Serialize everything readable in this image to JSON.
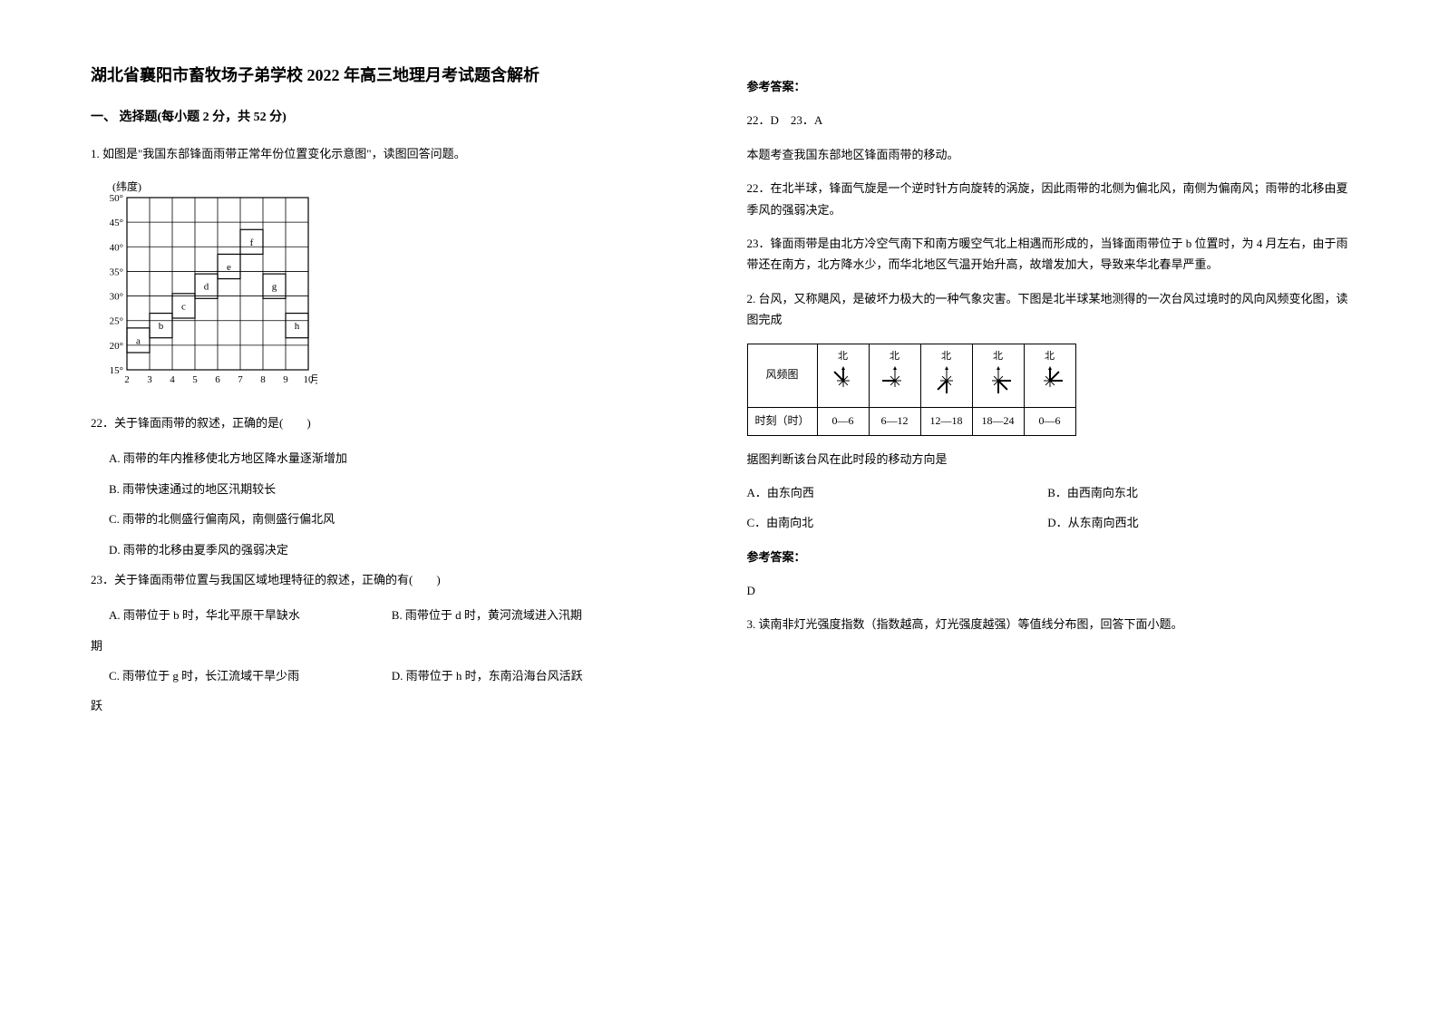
{
  "title": "湖北省襄阳市畜牧场子弟学校 2022 年高三地理月考试题含解析",
  "section1_heading": "一、 选择题(每小题 2 分，共 52 分)",
  "q1_stem": "1. 如图是\"我国东部锋面雨带正常年份位置变化示意图\"，读图回答问题。",
  "chart1": {
    "type": "line_step_chart",
    "ylabel": "(纬度)",
    "xlabel_suffix": "月",
    "ylim": [
      15,
      50
    ],
    "ytick_step": 5,
    "yticks": [
      "15°",
      "20°",
      "25°",
      "30°",
      "35°",
      "40°",
      "45°",
      "50°"
    ],
    "xticks": [
      2,
      3,
      4,
      5,
      6,
      7,
      8,
      9,
      10
    ],
    "markers": [
      {
        "label": "a",
        "x": 2.3,
        "y": 21
      },
      {
        "label": "b",
        "x": 3.3,
        "y": 24
      },
      {
        "label": "c",
        "x": 4.3,
        "y": 28
      },
      {
        "label": "d",
        "x": 5.3,
        "y": 32
      },
      {
        "label": "e",
        "x": 6.3,
        "y": 36
      },
      {
        "label": "f",
        "x": 7.3,
        "y": 41
      },
      {
        "label": "g",
        "x": 8.3,
        "y": 32
      },
      {
        "label": "h",
        "x": 9.3,
        "y": 24
      }
    ],
    "grid_color": "#000000",
    "background_color": "#ffffff",
    "line_color": "#000000"
  },
  "q22_stem": "22．关于锋面雨带的叙述，正确的是(　　)",
  "q22_a": "A. 雨带的年内推移使北方地区降水量逐渐增加",
  "q22_b": "B. 雨带快速通过的地区汛期较长",
  "q22_c": "C. 雨带的北侧盛行偏南风，南侧盛行偏北风",
  "q22_d": "D. 雨带的北移由夏季风的强弱决定",
  "q23_stem": "23．关于锋面雨带位置与我国区域地理特征的叙述，正确的有(　　)",
  "q23_a": "A. 雨带位于 b 时，华北平原干旱缺水",
  "q23_b": "B. 雨带位于 d 时，黄河流域进入汛期",
  "q23_c": "C. 雨带位于 g 时，长江流域干旱少雨",
  "q23_d": "D. 雨带位于 h 时，东南沿海台风活跃",
  "answer_heading": "参考答案：",
  "ans_22_23": "22．D　23．A",
  "explain_intro": "本题考查我国东部地区锋面雨带的移动。",
  "explain_22": "22．在北半球，锋面气旋是一个逆时针方向旋转的涡旋，因此雨带的北侧为偏北风，南侧为偏南风；雨带的北移由夏季风的强弱决定。",
  "explain_23": "23．锋面雨带是由北方冷空气南下和南方暖空气北上相遇而形成的，当锋面雨带位于 b 位置时，为 4 月左右，由于雨带还在南方，北方降水少，而华北地区气温开始升高，故增发加大，导致来华北春旱严重。",
  "q2_stem": "2. 台风，又称飓风，是破坏力极大的一种气象灾害。下图是北半球某地测得的一次台风过境时的风向风频变化图，读图完成",
  "wind_table": {
    "type": "table",
    "row1_label": "风频图",
    "row2_label": "时刻（时）",
    "north_label": "北",
    "times": [
      "0—6",
      "6—12",
      "12—18",
      "18—24",
      "0—6"
    ],
    "wind_dominant": [
      "NW",
      "W",
      "SW_S",
      "S_SE",
      "E_NE"
    ],
    "border_color": "#000000",
    "cell_fontsize": 12
  },
  "q2_sub": "据图判断该台风在此时段的移动方向是",
  "q2_a": "A．由东向西",
  "q2_b": "B．由西南向东北",
  "q2_c": "C．由南向北",
  "q2_d": "D．从东南向西北",
  "ans_q2": "D",
  "q3_stem": "3. 读南非灯光强度指数（指数越高，灯光强度越强）等值线分布图，回答下面小题。"
}
